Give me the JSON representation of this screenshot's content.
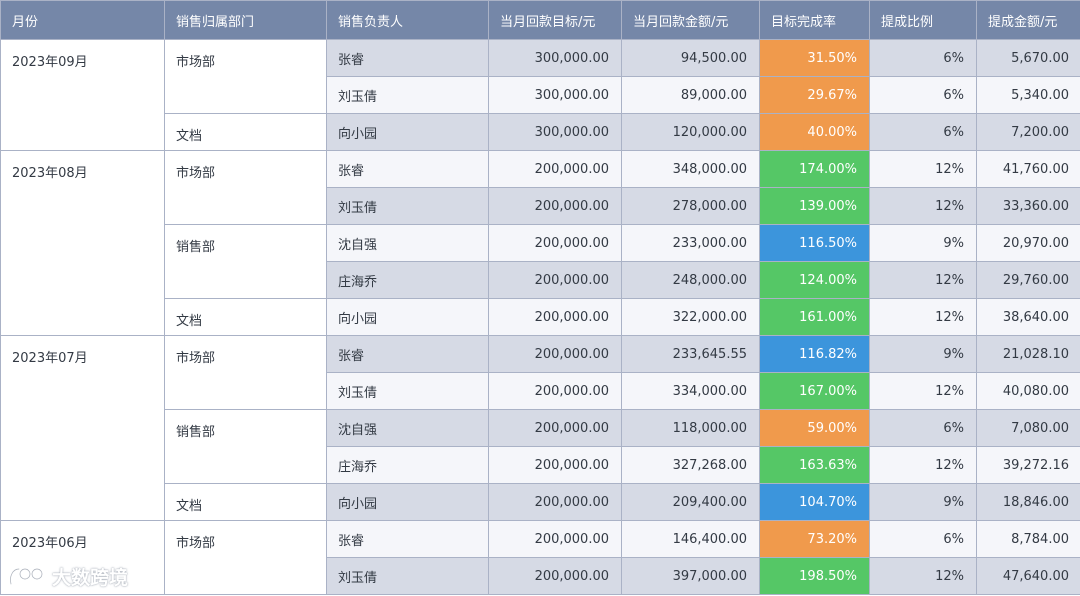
{
  "headers": [
    "月份",
    "销售归属部门",
    "销售负责人",
    "当月回款目标/元",
    "当月回款金额/元",
    "目标完成率",
    "提成比例",
    "提成金额/元"
  ],
  "rows": [
    {
      "month": "2023年09月",
      "month_rows": 3,
      "dept": "市场部",
      "dept_rows": 2,
      "name": "张睿",
      "target": "300,000.00",
      "amount": "94,500.00",
      "rate": "31.50%",
      "rate_color": "orange",
      "ratio": "6%",
      "commission": "5,670.00",
      "shade": true
    },
    {
      "name": "刘玉倩",
      "target": "300,000.00",
      "amount": "89,000.00",
      "rate": "29.67%",
      "rate_color": "orange",
      "ratio": "6%",
      "commission": "5,340.00",
      "shade": false
    },
    {
      "dept": "文档",
      "dept_rows": 1,
      "name": "向小园",
      "target": "300,000.00",
      "amount": "120,000.00",
      "rate": "40.00%",
      "rate_color": "orange",
      "ratio": "6%",
      "commission": "7,200.00",
      "shade": true
    },
    {
      "month": "2023年08月",
      "month_rows": 5,
      "dept": "市场部",
      "dept_rows": 2,
      "name": "张睿",
      "target": "200,000.00",
      "amount": "348,000.00",
      "rate": "174.00%",
      "rate_color": "green",
      "ratio": "12%",
      "commission": "41,760.00",
      "shade": false
    },
    {
      "name": "刘玉倩",
      "target": "200,000.00",
      "amount": "278,000.00",
      "rate": "139.00%",
      "rate_color": "green",
      "ratio": "12%",
      "commission": "33,360.00",
      "shade": true
    },
    {
      "dept": "销售部",
      "dept_rows": 2,
      "name": "沈自强",
      "target": "200,000.00",
      "amount": "233,000.00",
      "rate": "116.50%",
      "rate_color": "blue",
      "ratio": "9%",
      "commission": "20,970.00",
      "shade": false
    },
    {
      "name": "庄海乔",
      "target": "200,000.00",
      "amount": "248,000.00",
      "rate": "124.00%",
      "rate_color": "green",
      "ratio": "12%",
      "commission": "29,760.00",
      "shade": true
    },
    {
      "dept": "文档",
      "dept_rows": 1,
      "name": "向小园",
      "target": "200,000.00",
      "amount": "322,000.00",
      "rate": "161.00%",
      "rate_color": "green",
      "ratio": "12%",
      "commission": "38,640.00",
      "shade": false
    },
    {
      "month": "2023年07月",
      "month_rows": 5,
      "dept": "市场部",
      "dept_rows": 2,
      "name": "张睿",
      "target": "200,000.00",
      "amount": "233,645.55",
      "rate": "116.82%",
      "rate_color": "blue",
      "ratio": "9%",
      "commission": "21,028.10",
      "shade": true
    },
    {
      "name": "刘玉倩",
      "target": "200,000.00",
      "amount": "334,000.00",
      "rate": "167.00%",
      "rate_color": "green",
      "ratio": "12%",
      "commission": "40,080.00",
      "shade": false
    },
    {
      "dept": "销售部",
      "dept_rows": 2,
      "name": "沈自强",
      "target": "200,000.00",
      "amount": "118,000.00",
      "rate": "59.00%",
      "rate_color": "orange",
      "ratio": "6%",
      "commission": "7,080.00",
      "shade": true
    },
    {
      "name": "庄海乔",
      "target": "200,000.00",
      "amount": "327,268.00",
      "rate": "163.63%",
      "rate_color": "green",
      "ratio": "12%",
      "commission": "39,272.16",
      "shade": false
    },
    {
      "dept": "文档",
      "dept_rows": 1,
      "name": "向小园",
      "target": "200,000.00",
      "amount": "209,400.00",
      "rate": "104.70%",
      "rate_color": "blue",
      "ratio": "9%",
      "commission": "18,846.00",
      "shade": true
    },
    {
      "month": "2023年06月",
      "month_rows": 2,
      "dept": "市场部",
      "dept_rows": 2,
      "name": "张睿",
      "target": "200,000.00",
      "amount": "146,400.00",
      "rate": "73.20%",
      "rate_color": "orange",
      "ratio": "6%",
      "commission": "8,784.00",
      "shade": false
    },
    {
      "name": "刘玉倩",
      "target": "200,000.00",
      "amount": "397,000.00",
      "rate": "198.50%",
      "rate_color": "green",
      "ratio": "12%",
      "commission": "47,640.00",
      "shade": true
    }
  ],
  "watermark": {
    "text": "大数跨境",
    "icon": "brand-logo-icon"
  }
}
